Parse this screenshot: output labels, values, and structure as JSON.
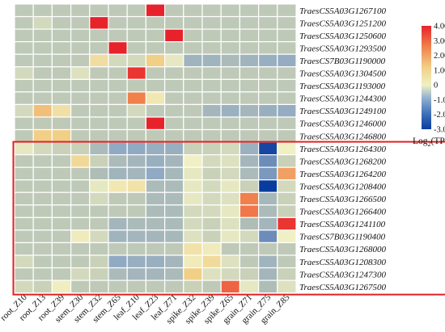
{
  "chart_data": {
    "type": "heatmap",
    "columns": [
      "root_Z10",
      "root_Z13",
      "root_Z39",
      "stem_Z30",
      "stem_Z32",
      "stem_Z65",
      "leaf_Z10",
      "leaf_Z23",
      "leaf_Z71",
      "spike_Z32",
      "spike_Z39",
      "spike_Z65",
      "grain_Z71",
      "grain_Z75",
      "grain_Z85"
    ],
    "rows": [
      "TraesCS5A03G1267100",
      "TraesCS5A03G1251200",
      "TraesCS5A03G1250600",
      "TraesCS5A03G1293500",
      "TraesCS7B03G1190000",
      "TraesCS5A03G1304500",
      "TraesCS5A03G1193000",
      "TraesCS5A03G1244300",
      "TraesCS5A03G1249100",
      "TraesCS5A03G1246000",
      "TraesCS5A03G1246800",
      "TraesCS5A03G1264300",
      "TraesCS5A03G1268200",
      "TraesCS5A03G1264200",
      "TraesCS5A03G1208400",
      "TraesCS5A03G1266500",
      "TraesCS5A03G1266400",
      "TraesCS5A03G1241100",
      "TraesCS7B03G1190400",
      "TraesCS5A03G1268000",
      "TraesCS5A03G1208300",
      "TraesCS5A03G1247300",
      "TraesCS5A03G1267500"
    ],
    "values": [
      [
        0,
        0,
        0,
        0,
        0,
        0,
        0,
        4.0,
        0,
        0,
        0,
        0,
        0,
        0,
        0
      ],
      [
        0,
        0.3,
        0,
        0,
        4.0,
        0,
        0,
        0,
        0,
        0,
        0,
        0,
        0,
        0,
        0
      ],
      [
        0,
        0,
        0,
        0,
        0,
        0,
        0,
        0,
        4.0,
        0,
        0,
        0,
        0,
        0,
        0
      ],
      [
        0,
        0,
        0,
        0,
        0,
        4.0,
        0,
        0,
        0,
        0,
        0,
        0,
        0,
        0,
        0
      ],
      [
        0,
        0,
        0,
        0,
        1.4,
        0.3,
        0.3,
        2.0,
        0.5,
        -0.6,
        -0.6,
        -0.3,
        -0.6,
        -0.8,
        -0.9
      ],
      [
        0.3,
        0,
        0,
        0.4,
        0,
        0,
        3.8,
        0,
        0,
        0,
        0,
        0,
        0,
        0,
        0
      ],
      [
        0,
        0,
        0,
        0,
        0,
        0,
        0,
        0,
        0,
        0,
        0,
        0,
        0,
        0,
        0
      ],
      [
        0,
        0,
        0,
        0,
        0,
        0,
        3.0,
        1.0,
        0,
        0,
        0,
        0,
        0,
        0,
        0
      ],
      [
        0.3,
        2.2,
        1.3,
        0,
        0,
        0,
        0.3,
        0,
        0,
        0,
        -0.5,
        -0.7,
        -0.5,
        -0.8,
        -0.9
      ],
      [
        0,
        0,
        0,
        0,
        0,
        0,
        0,
        4.0,
        0,
        0,
        0,
        0,
        0,
        0,
        0
      ],
      [
        0,
        2.0,
        2.0,
        0,
        0,
        0,
        0,
        0,
        0,
        0,
        0,
        0,
        0,
        0,
        0
      ],
      [
        0.5,
        0.3,
        0.2,
        0.2,
        -0.3,
        -1.0,
        -1.0,
        -0.8,
        -0.8,
        0.2,
        0.2,
        0.3,
        -0.7,
        -2.8,
        0.6
      ],
      [
        0,
        0,
        0,
        1.6,
        0.2,
        -0.3,
        -0.5,
        -0.8,
        -0.5,
        0.6,
        0.3,
        0.4,
        -0.5,
        -1.5,
        0.2
      ],
      [
        0,
        0,
        0,
        0,
        -0.2,
        -0.6,
        -0.5,
        -1.0,
        -0.4,
        0.5,
        0.2,
        0.3,
        -0.3,
        -1.3,
        2.6
      ],
      [
        0,
        0,
        0,
        0,
        0.5,
        1.0,
        1.2,
        -0.3,
        -0.3,
        0.5,
        0.3,
        0.5,
        0.2,
        -3.0,
        0.3
      ],
      [
        0,
        0,
        0,
        0,
        0.3,
        0,
        0,
        -0.3,
        -0.3,
        0.5,
        0.3,
        0.4,
        3.0,
        -0.4,
        0.2
      ],
      [
        0,
        0,
        0,
        0,
        0,
        0,
        0,
        -0.3,
        -0.3,
        0.3,
        0.3,
        0.5,
        3.1,
        -0.3,
        0.2
      ],
      [
        0,
        0,
        0,
        0,
        0,
        -0.5,
        -0.3,
        -0.3,
        -0.3,
        0.3,
        0.2,
        0.4,
        -0.2,
        -0.5,
        3.8
      ],
      [
        0,
        0,
        0,
        0.8,
        0.3,
        -0.6,
        -0.5,
        -0.5,
        -0.4,
        0.4,
        0.2,
        0.5,
        0.3,
        -1.5,
        0.6
      ],
      [
        0,
        0,
        0,
        0,
        0,
        0,
        0,
        0,
        0,
        1.2,
        0.8,
        0,
        0,
        0,
        0
      ],
      [
        0.3,
        0,
        0,
        0,
        0.2,
        -1.0,
        -0.8,
        -0.8,
        -0.5,
        0.8,
        1.5,
        0.4,
        0,
        -0.6,
        0
      ],
      [
        0,
        0,
        0,
        0.3,
        0.2,
        -0.3,
        -0.5,
        -0.5,
        -0.3,
        2.0,
        0.4,
        0.3,
        0.2,
        -0.5,
        0.2
      ],
      [
        0.3,
        0.2,
        0.7,
        0,
        0,
        0,
        0,
        0,
        0,
        0.2,
        0,
        3.3,
        0.5,
        -0.2,
        0.4
      ]
    ],
    "colorbar": {
      "title_main": "Log",
      "title_sub": "2",
      "title_tail": "(TPM)",
      "ticks": [
        "4.00",
        "3.00",
        "2.00",
        "1.00",
        "0",
        "-1.00",
        "-2.00",
        "-3.00"
      ],
      "tick_values": [
        4,
        3,
        2,
        1,
        0,
        -1,
        -2,
        -3
      ],
      "vmin": -3,
      "vmax": 4,
      "colors": {
        "low": "#0a3c9e",
        "mid": "#f0f0c4",
        "high": "#e8222b"
      }
    },
    "highlight_box": {
      "first_row_index": 11,
      "last_row_index": 22,
      "color": "#e02020"
    },
    "cell_border_color": "#ffffff",
    "legend_placement": "top-right"
  }
}
